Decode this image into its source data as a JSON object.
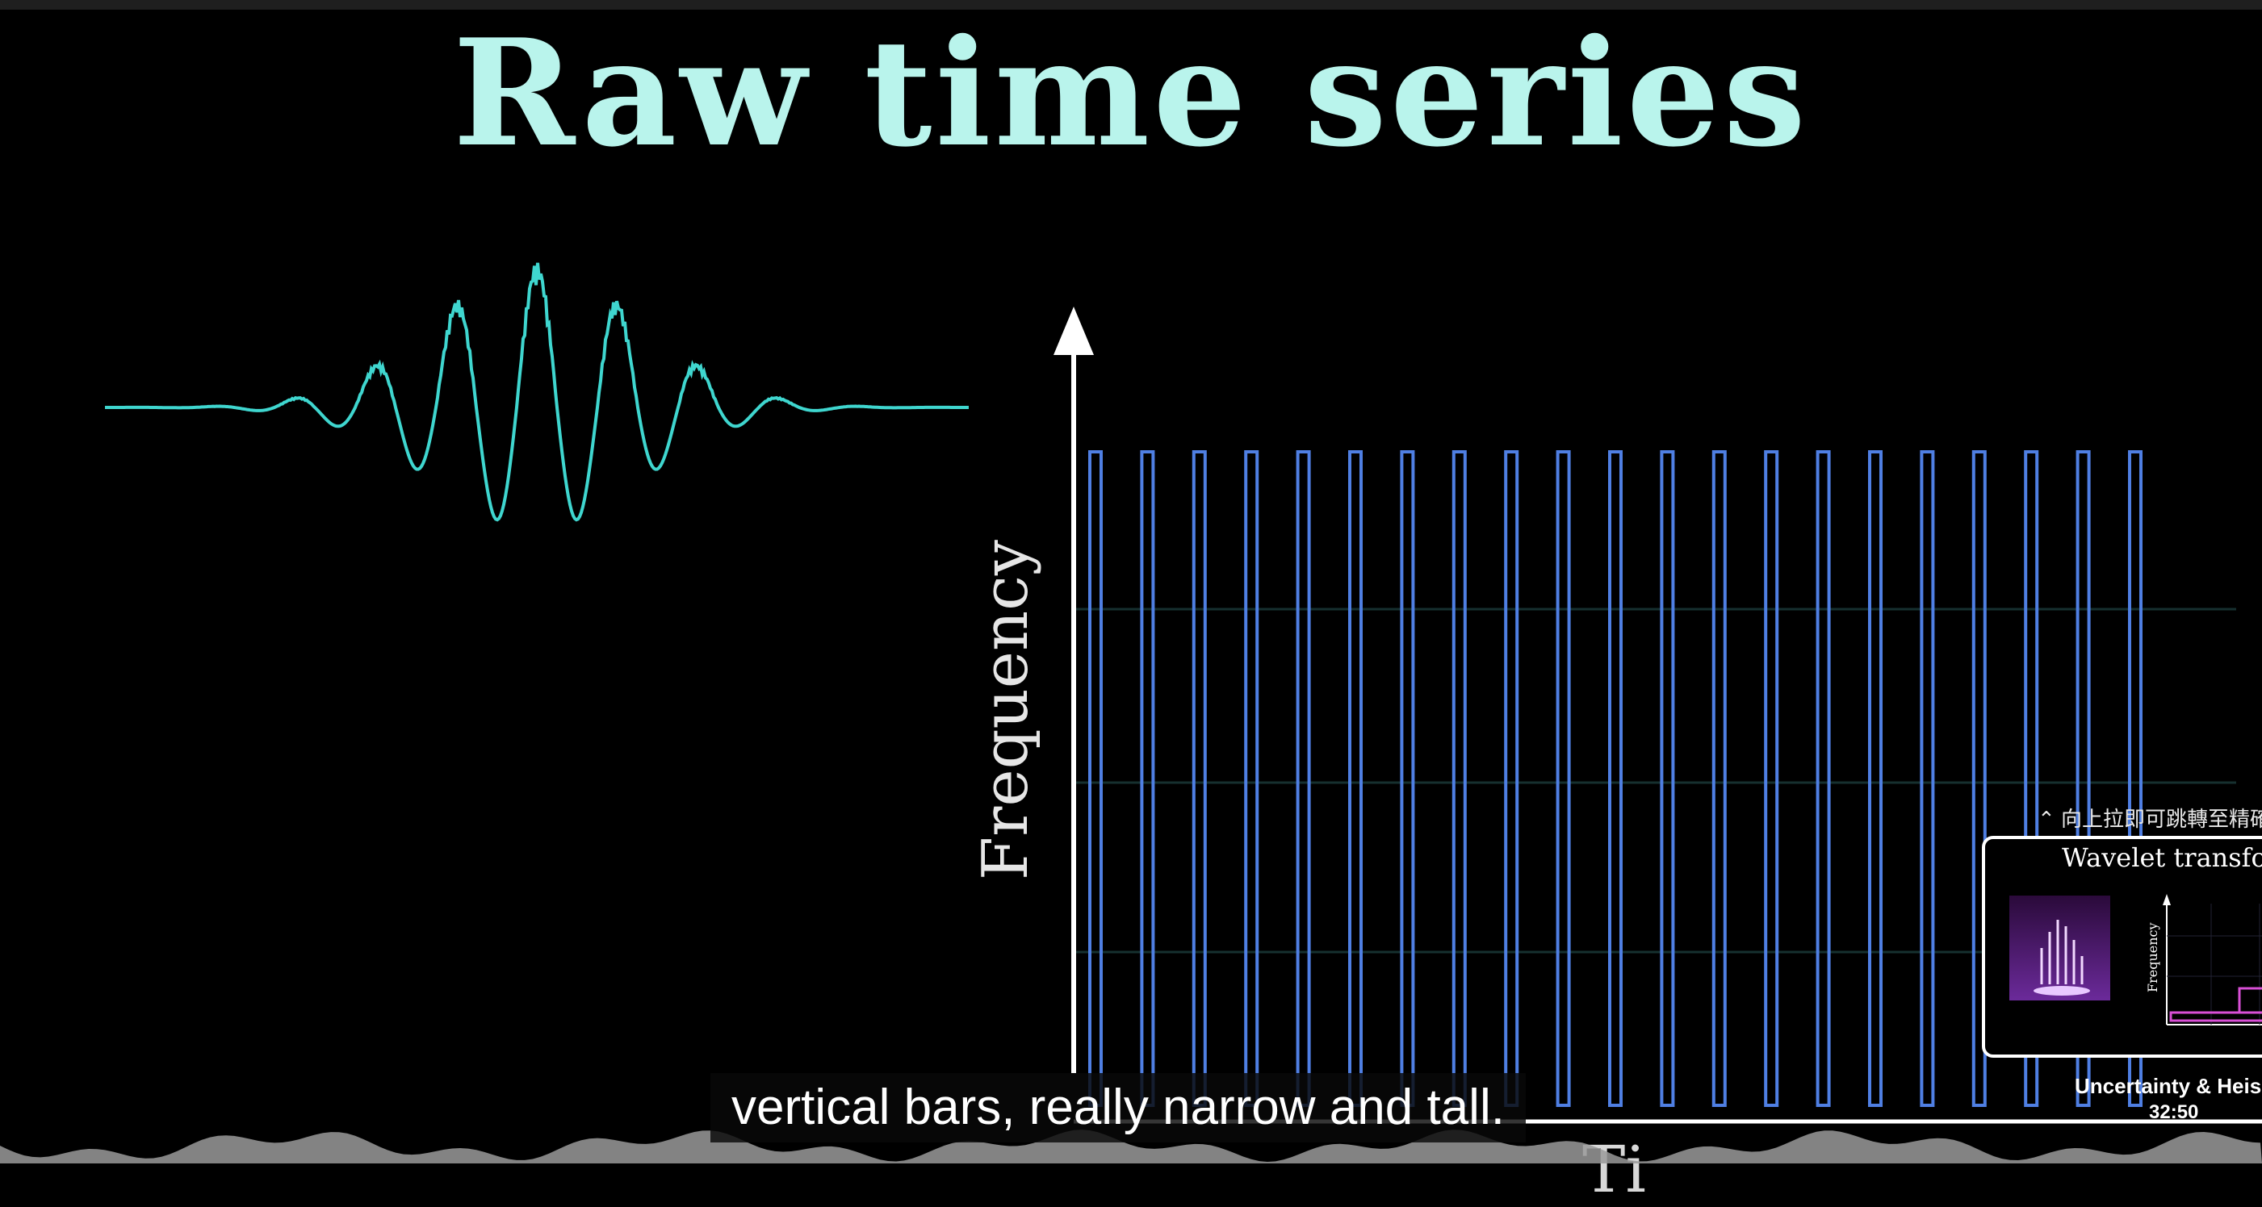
{
  "slide": {
    "title": "Raw time series",
    "ylabel": "Frequency",
    "xlabel_partial": "Ti",
    "colors": {
      "title": "#b9f4ec",
      "waveform": "#3fd6cf",
      "bars": "#4f7fe3",
      "grid": "#16302f"
    }
  },
  "player": {
    "caption": "vertical bars, really narrow and tall.",
    "end_card": {
      "hint": "⌃ 向上拉即可跳轉至精確的",
      "thumbnail_title": "Wavelet transfor",
      "thumbnail_ylabel": "Frequency",
      "video_title": "Uncertainty & Heise",
      "duration": "32:50"
    }
  },
  "chart_data": {
    "type": "bar",
    "title": "",
    "ylabel": "Frequency",
    "bar_count": 21,
    "values": [
      1,
      1,
      1,
      1,
      1,
      1,
      1,
      1,
      1,
      1,
      1,
      1,
      1,
      1,
      1,
      1,
      1,
      1,
      1,
      1,
      1
    ]
  }
}
